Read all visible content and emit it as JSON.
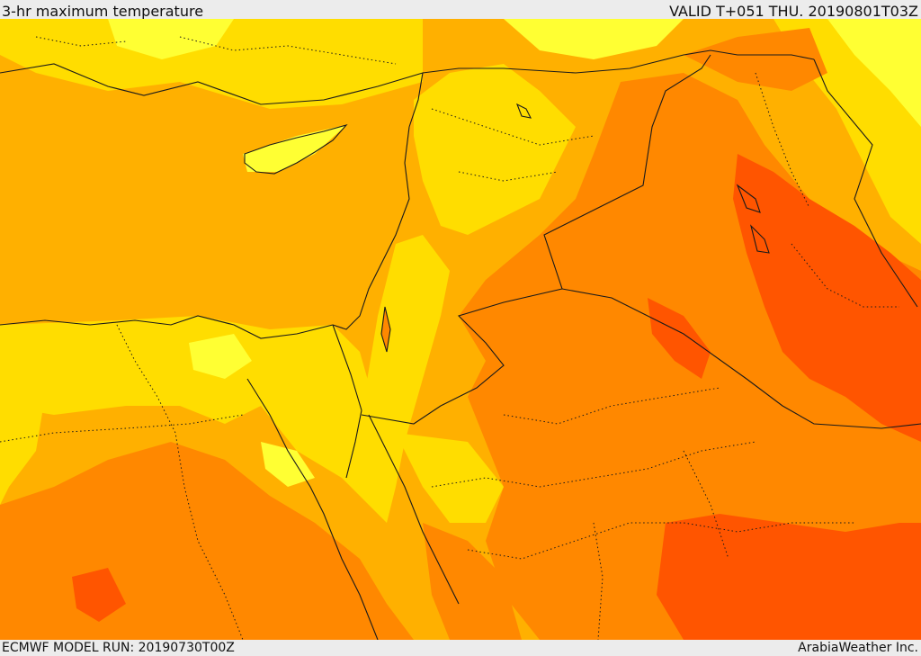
{
  "header": {
    "title": "3-hr maximum temperature",
    "valid": "VALID T+051 THU. 20190801T03Z"
  },
  "footer": {
    "model_run": "ECMWF MODEL RUN: 20190730T00Z",
    "brand": "ArabiaWeather Inc."
  },
  "map": {
    "field": "temperature",
    "colors": {
      "band_light": "#ffff33",
      "band_yellow": "#ffdd00",
      "band_orange_light": "#ffb000",
      "band_orange": "#ff8800",
      "band_orange_dark": "#ff5500",
      "outline": "#1a1a1a"
    }
  }
}
